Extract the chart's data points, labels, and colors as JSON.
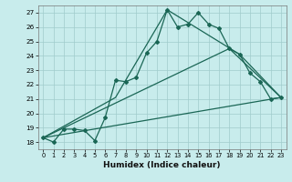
{
  "xlabel": "Humidex (Indice chaleur)",
  "xlim": [
    -0.5,
    23.5
  ],
  "ylim": [
    17.5,
    27.5
  ],
  "yticks": [
    18,
    19,
    20,
    21,
    22,
    23,
    24,
    25,
    26,
    27
  ],
  "xticks": [
    0,
    1,
    2,
    3,
    4,
    5,
    6,
    7,
    8,
    9,
    10,
    11,
    12,
    13,
    14,
    15,
    16,
    17,
    18,
    19,
    20,
    21,
    22,
    23
  ],
  "background_color": "#c8ecec",
  "grid_color": "#a0cccc",
  "line_color": "#1a6655",
  "main_x": [
    0,
    1,
    2,
    3,
    4,
    5,
    6,
    7,
    8,
    9,
    10,
    11,
    12,
    13,
    14,
    15,
    16,
    17,
    18,
    19,
    20,
    21,
    22,
    23
  ],
  "main_y": [
    18.3,
    18.0,
    18.9,
    18.9,
    18.8,
    18.1,
    19.7,
    22.3,
    22.2,
    22.5,
    24.2,
    25.0,
    27.2,
    26.0,
    26.2,
    27.0,
    26.2,
    25.9,
    24.5,
    24.1,
    22.8,
    22.2,
    21.0,
    21.1
  ],
  "line2_x": [
    0,
    7,
    12,
    19,
    23
  ],
  "line2_y": [
    18.3,
    21.1,
    27.2,
    24.1,
    21.1
  ],
  "line3_x": [
    0,
    23
  ],
  "line3_y": [
    18.3,
    21.1
  ],
  "line4_x": [
    0,
    18,
    23
  ],
  "line4_y": [
    18.3,
    24.5,
    21.1
  ]
}
